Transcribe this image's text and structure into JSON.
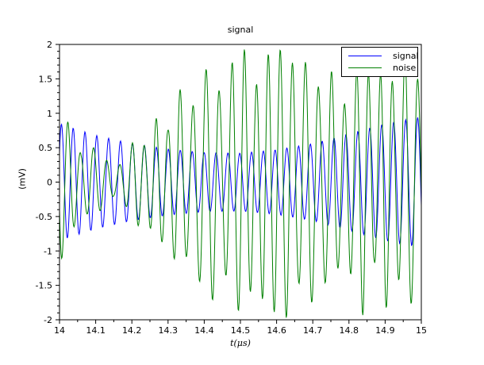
{
  "window": {
    "background": "#ffffff"
  },
  "chart_data": {
    "type": "line",
    "title": "signal",
    "xlabel": "t(μs)",
    "ylabel": "(mV)",
    "xlim": [
      14,
      15
    ],
    "ylim": [
      -2,
      2
    ],
    "grid": false,
    "axis_color": "#000000",
    "x_ticks": {
      "major": [
        14,
        14.1,
        14.2,
        14.3,
        14.4,
        14.5,
        14.6,
        14.7,
        14.8,
        14.9,
        15
      ],
      "labels": [
        "14",
        "14.1",
        "14.2",
        "14.3",
        "14.4",
        "14.5",
        "14.6",
        "14.7",
        "14.8",
        "14.9",
        "15"
      ],
      "minor_offset": 0.05
    },
    "y_ticks": {
      "major": [
        -2,
        -1.5,
        -1,
        -0.5,
        0,
        0.5,
        1,
        1.5,
        2
      ],
      "labels": [
        "-2",
        "-1.5",
        "-1",
        "-0.5",
        "0",
        "0.5",
        "1",
        "1.5",
        "2"
      ],
      "minor_step": 0.1
    },
    "legend": {
      "position": "top-right",
      "entries": [
        "signal",
        "noise"
      ]
    },
    "samples_per_series": 700,
    "series": [
      {
        "name": "signal",
        "color": "#0000ff",
        "frequency_per_us": 30.5,
        "phase_rad": 0.5,
        "phase_wobble": {
          "freq_per_us": 1.6,
          "amp_rad": 0.18,
          "phase": 0.2
        },
        "envelope_t": [
          14.0,
          14.1,
          14.2,
          14.3,
          14.4,
          14.5,
          14.6,
          14.7,
          14.8,
          14.9,
          15.0
        ],
        "envelope_a": [
          0.85,
          0.68,
          0.56,
          0.48,
          0.43,
          0.42,
          0.47,
          0.56,
          0.7,
          0.85,
          0.95
        ]
      },
      {
        "name": "noise",
        "color": "#008000",
        "frequency_per_us": 29.0,
        "phase_rad": 3.1,
        "phase_wobble": {
          "freq_per_us": 3.3,
          "amp_rad": 0.5,
          "phase": 0.9
        },
        "envelope_t": [
          14.0,
          14.03,
          14.06,
          14.09,
          14.12,
          14.15,
          14.18,
          14.21,
          14.24,
          14.27,
          14.3,
          14.33,
          14.36,
          14.39,
          14.42,
          14.45,
          14.48,
          14.51,
          14.54,
          14.57,
          14.6,
          14.63,
          14.66,
          14.69,
          14.72,
          14.75,
          14.78,
          14.81,
          14.84,
          14.87,
          14.9,
          14.93,
          14.96,
          15.0
        ],
        "envelope_a": [
          1.2,
          0.78,
          0.4,
          0.52,
          0.38,
          0.2,
          0.3,
          0.68,
          0.5,
          0.97,
          0.75,
          1.4,
          0.95,
          1.5,
          1.78,
          1.15,
          1.8,
          1.95,
          1.35,
          1.85,
          1.9,
          1.98,
          1.45,
          1.9,
          1.3,
          1.65,
          1.05,
          1.4,
          1.97,
          1.15,
          1.9,
          1.25,
          1.95,
          1.35
        ]
      }
    ]
  }
}
